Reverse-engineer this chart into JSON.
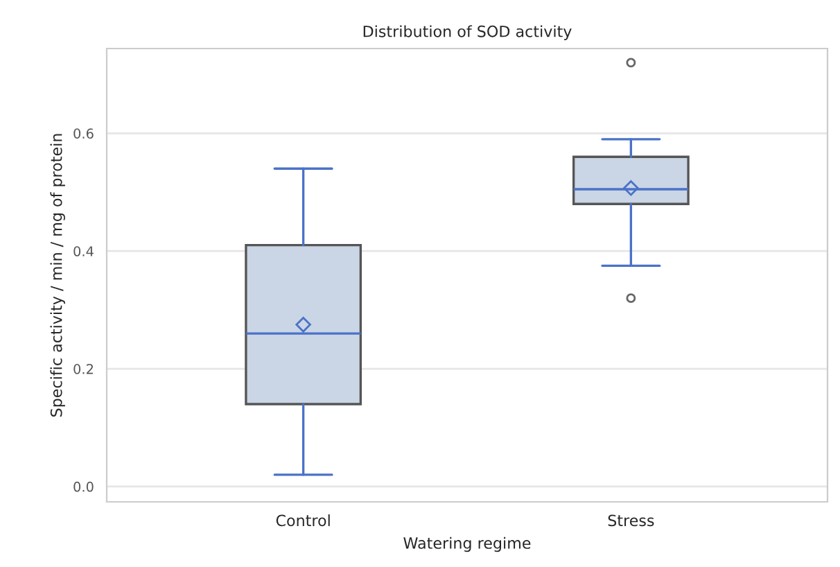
{
  "chart_data": {
    "type": "box",
    "title": "Distribution of SOD activity",
    "xlabel": "Watering regime",
    "ylabel": "Specific activity / min / mg of protein",
    "categories": [
      "Control",
      "Stress"
    ],
    "boxes": [
      {
        "low": 0.02,
        "q1": 0.14,
        "median": 0.26,
        "q3": 0.41,
        "high": 0.54,
        "mean": 0.275
      },
      {
        "low": 0.375,
        "q1": 0.48,
        "median": 0.505,
        "q3": 0.56,
        "high": 0.59,
        "mean": 0.507,
        "outliers": [
          0.72,
          0.32
        ]
      }
    ],
    "color": "#cad5e5",
    "ylim": [
      -0.026,
      0.744
    ],
    "yticks": [
      {
        "value": 0,
        "label": "0.0"
      },
      {
        "value": 0.2,
        "label": "0.2"
      },
      {
        "value": 0.4,
        "label": "0.4"
      },
      {
        "value": 0.6,
        "label": "0.6"
      }
    ],
    "grid": "y",
    "legend": false
  }
}
